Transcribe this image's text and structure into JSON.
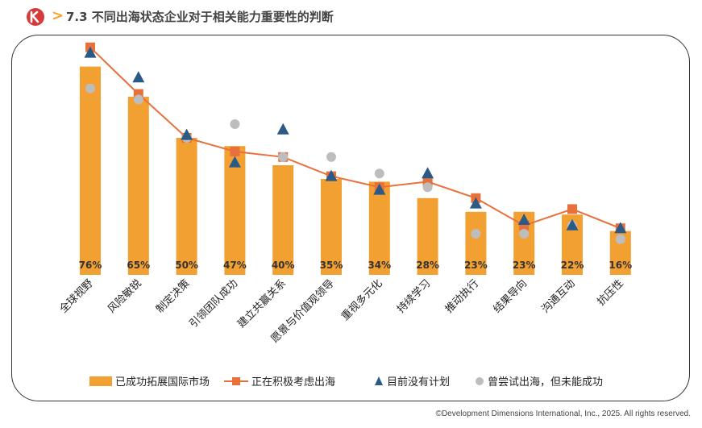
{
  "header": {
    "section_title": "7.3 不同出海状态企业对于相关能力重要性的判断",
    "chevron": ">",
    "logo_icon": "company-logo-icon"
  },
  "footer": {
    "copyright": "©Development Dimensions International, Inc., 2025. All rights reserved."
  },
  "colors": {
    "bar": "#f3a033",
    "line": "#e8703a",
    "triangle": "#2b5a86",
    "circle": "#bdbdbd",
    "logo": "#d63a3a"
  },
  "chart_data": {
    "type": "bar",
    "categories": [
      "全球视野",
      "风险敏锐",
      "制定决策",
      "引领团队成功",
      "建立共赢关系",
      "愿景与价值观领导",
      "重视多元化",
      "持续学习",
      "推动执行",
      "结果导向",
      "沟通互动",
      "抗压性"
    ],
    "ylim": [
      0,
      85
    ],
    "grid": false,
    "legend_position": "bottom",
    "series": [
      {
        "name": "已成功拓展国际市场",
        "type": "bar",
        "marker": "bar",
        "values": [
          76,
          65,
          50,
          47,
          40,
          35,
          34,
          28,
          23,
          23,
          22,
          16
        ],
        "labels": [
          "76%",
          "65%",
          "50%",
          "47%",
          "40%",
          "35%",
          "34%",
          "28%",
          "23%",
          "23%",
          "22%",
          "16%"
        ]
      },
      {
        "name": "正在积极考虑出海",
        "type": "line",
        "marker": "square",
        "values": [
          83,
          66,
          50,
          45,
          43,
          36,
          32,
          34,
          28,
          18,
          24,
          17
        ]
      },
      {
        "name": "目前没有计划",
        "type": "scatter",
        "marker": "triangle",
        "values": [
          81,
          72,
          51,
          41,
          53,
          36,
          31,
          37,
          26,
          20,
          18,
          17
        ]
      },
      {
        "name": "曾尝试出海，但未能成功",
        "type": "scatter",
        "marker": "circle",
        "values": [
          68,
          64,
          50,
          55,
          43,
          43,
          37,
          32,
          15,
          15,
          18,
          13
        ]
      }
    ]
  }
}
